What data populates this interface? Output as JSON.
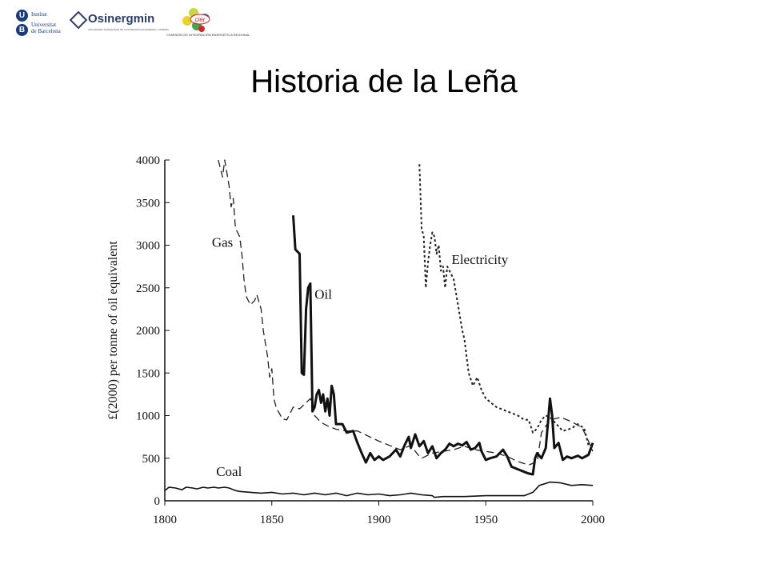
{
  "header": {
    "title": "Historia de la Leña",
    "logos": {
      "ub": {
        "letters": [
          "U",
          "B"
        ],
        "lines": [
          "Institut",
          "Universitat",
          "de Barcelona"
        ]
      },
      "osinergmin": {
        "name": "Osinergmin",
        "subtitle": "ORGANISMO SUPERVISOR DE LA INVERSIÓN EN ENERGÍA Y MINERÍA"
      },
      "cier": {
        "name": "cier",
        "subtitle": "COMISIÓN DE INTEGRACIÓN ENERGÉTICA REGIONAL"
      }
    }
  },
  "chart_data": {
    "type": "line",
    "title": "",
    "xlabel": "",
    "ylabel": "£(2000) per tonne of oil equivalent",
    "xlim": [
      1800,
      2000
    ],
    "ylim": [
      0,
      4000
    ],
    "x_ticks": [
      1800,
      1850,
      1900,
      1950,
      2000
    ],
    "y_ticks": [
      0,
      500,
      1000,
      1500,
      2000,
      2500,
      3000,
      3500,
      4000
    ],
    "grid": false,
    "series": [
      {
        "name": "Gas",
        "style": "dashed",
        "color": "#222222",
        "points": [
          [
            1825,
            4000
          ],
          [
            1827,
            3800
          ],
          [
            1828,
            4000
          ],
          [
            1829,
            3850
          ],
          [
            1830,
            3700
          ],
          [
            1831,
            3450
          ],
          [
            1832,
            3550
          ],
          [
            1833,
            3200
          ],
          [
            1835,
            3100
          ],
          [
            1836,
            2900
          ],
          [
            1837,
            2600
          ],
          [
            1838,
            2400
          ],
          [
            1840,
            2300
          ],
          [
            1842,
            2350
          ],
          [
            1843,
            2420
          ],
          [
            1845,
            2250
          ],
          [
            1846,
            2000
          ],
          [
            1848,
            1700
          ],
          [
            1849,
            1450
          ],
          [
            1850,
            1550
          ],
          [
            1851,
            1200
          ],
          [
            1852,
            1100
          ],
          [
            1853,
            1050
          ],
          [
            1855,
            960
          ],
          [
            1857,
            950
          ],
          [
            1860,
            1100
          ],
          [
            1863,
            1080
          ],
          [
            1866,
            1150
          ],
          [
            1868,
            1200
          ],
          [
            1870,
            1000
          ],
          [
            1873,
            920
          ],
          [
            1876,
            880
          ],
          [
            1880,
            840
          ],
          [
            1885,
            820
          ],
          [
            1890,
            820
          ],
          [
            1895,
            760
          ],
          [
            1900,
            700
          ],
          [
            1905,
            650
          ],
          [
            1910,
            600
          ],
          [
            1915,
            650
          ],
          [
            1918,
            550
          ],
          [
            1920,
            500
          ],
          [
            1925,
            560
          ],
          [
            1930,
            580
          ],
          [
            1935,
            600
          ],
          [
            1940,
            640
          ],
          [
            1945,
            600
          ],
          [
            1950,
            580
          ],
          [
            1955,
            560
          ],
          [
            1960,
            520
          ],
          [
            1965,
            460
          ],
          [
            1970,
            420
          ],
          [
            1974,
            460
          ],
          [
            1976,
            800
          ],
          [
            1980,
            950
          ],
          [
            1985,
            980
          ],
          [
            1990,
            930
          ],
          [
            1995,
            860
          ],
          [
            1998,
            700
          ],
          [
            2000,
            580
          ]
        ]
      },
      {
        "name": "Oil",
        "style": "solid-bold",
        "color": "#111111",
        "points": [
          [
            1860,
            3350
          ],
          [
            1861,
            2950
          ],
          [
            1863,
            2900
          ],
          [
            1864,
            1500
          ],
          [
            1865,
            1480
          ],
          [
            1866,
            2250
          ],
          [
            1867,
            2500
          ],
          [
            1868,
            2550
          ],
          [
            1869,
            1050
          ],
          [
            1870,
            1100
          ],
          [
            1871,
            1250
          ],
          [
            1872,
            1300
          ],
          [
            1873,
            1150
          ],
          [
            1874,
            1250
          ],
          [
            1875,
            1050
          ],
          [
            1876,
            1200
          ],
          [
            1877,
            1000
          ],
          [
            1878,
            1350
          ],
          [
            1879,
            1250
          ],
          [
            1880,
            900
          ],
          [
            1883,
            900
          ],
          [
            1885,
            800
          ],
          [
            1888,
            820
          ],
          [
            1890,
            680
          ],
          [
            1892,
            560
          ],
          [
            1894,
            450
          ],
          [
            1896,
            560
          ],
          [
            1898,
            480
          ],
          [
            1900,
            520
          ],
          [
            1902,
            480
          ],
          [
            1905,
            520
          ],
          [
            1908,
            600
          ],
          [
            1910,
            520
          ],
          [
            1912,
            650
          ],
          [
            1914,
            750
          ],
          [
            1915,
            620
          ],
          [
            1917,
            780
          ],
          [
            1919,
            640
          ],
          [
            1921,
            700
          ],
          [
            1923,
            560
          ],
          [
            1925,
            640
          ],
          [
            1927,
            500
          ],
          [
            1929,
            560
          ],
          [
            1931,
            600
          ],
          [
            1933,
            670
          ],
          [
            1935,
            640
          ],
          [
            1937,
            670
          ],
          [
            1939,
            650
          ],
          [
            1941,
            690
          ],
          [
            1943,
            600
          ],
          [
            1945,
            620
          ],
          [
            1947,
            680
          ],
          [
            1948,
            580
          ],
          [
            1950,
            480
          ],
          [
            1952,
            500
          ],
          [
            1955,
            520
          ],
          [
            1958,
            600
          ],
          [
            1960,
            520
          ],
          [
            1962,
            400
          ],
          [
            1965,
            370
          ],
          [
            1968,
            340
          ],
          [
            1970,
            320
          ],
          [
            1972,
            310
          ],
          [
            1973,
            500
          ],
          [
            1974,
            560
          ],
          [
            1976,
            500
          ],
          [
            1978,
            620
          ],
          [
            1979,
            900
          ],
          [
            1980,
            1200
          ],
          [
            1981,
            1000
          ],
          [
            1982,
            620
          ],
          [
            1984,
            680
          ],
          [
            1986,
            480
          ],
          [
            1988,
            520
          ],
          [
            1990,
            500
          ],
          [
            1993,
            530
          ],
          [
            1995,
            500
          ],
          [
            1998,
            540
          ],
          [
            2000,
            680
          ]
        ]
      },
      {
        "name": "Electricity",
        "style": "dotted",
        "color": "#222222",
        "points": [
          [
            1919,
            3950
          ],
          [
            1920,
            3200
          ],
          [
            1921,
            3100
          ],
          [
            1922,
            2500
          ],
          [
            1923,
            2800
          ],
          [
            1924,
            3000
          ],
          [
            1925,
            3150
          ],
          [
            1926,
            3100
          ],
          [
            1927,
            2900
          ],
          [
            1928,
            3000
          ],
          [
            1929,
            2700
          ],
          [
            1930,
            2750
          ],
          [
            1931,
            2500
          ],
          [
            1932,
            2750
          ],
          [
            1933,
            2700
          ],
          [
            1935,
            2600
          ],
          [
            1937,
            2300
          ],
          [
            1939,
            2000
          ],
          [
            1940,
            1900
          ],
          [
            1942,
            1500
          ],
          [
            1944,
            1350
          ],
          [
            1946,
            1450
          ],
          [
            1948,
            1300
          ],
          [
            1950,
            1200
          ],
          [
            1955,
            1100
          ],
          [
            1960,
            1050
          ],
          [
            1965,
            1000
          ],
          [
            1968,
            950
          ],
          [
            1970,
            950
          ],
          [
            1972,
            800
          ],
          [
            1974,
            850
          ],
          [
            1976,
            950
          ],
          [
            1978,
            1000
          ],
          [
            1980,
            980
          ],
          [
            1983,
            900
          ],
          [
            1986,
            820
          ],
          [
            1990,
            850
          ],
          [
            1993,
            900
          ],
          [
            1996,
            850
          ],
          [
            1998,
            650
          ],
          [
            2000,
            630
          ]
        ]
      },
      {
        "name": "Coal",
        "style": "solid",
        "color": "#111111",
        "points": [
          [
            1800,
            120
          ],
          [
            1802,
            160
          ],
          [
            1805,
            150
          ],
          [
            1808,
            130
          ],
          [
            1810,
            160
          ],
          [
            1813,
            150
          ],
          [
            1815,
            140
          ],
          [
            1818,
            160
          ],
          [
            1820,
            150
          ],
          [
            1823,
            160
          ],
          [
            1825,
            150
          ],
          [
            1828,
            160
          ],
          [
            1830,
            150
          ],
          [
            1833,
            120
          ],
          [
            1835,
            110
          ],
          [
            1840,
            100
          ],
          [
            1845,
            90
          ],
          [
            1850,
            100
          ],
          [
            1855,
            80
          ],
          [
            1860,
            90
          ],
          [
            1865,
            70
          ],
          [
            1870,
            90
          ],
          [
            1875,
            70
          ],
          [
            1880,
            90
          ],
          [
            1885,
            60
          ],
          [
            1890,
            90
          ],
          [
            1895,
            70
          ],
          [
            1900,
            80
          ],
          [
            1905,
            60
          ],
          [
            1910,
            70
          ],
          [
            1915,
            90
          ],
          [
            1920,
            70
          ],
          [
            1925,
            60
          ],
          [
            1926,
            40
          ],
          [
            1930,
            50
          ],
          [
            1940,
            50
          ],
          [
            1950,
            60
          ],
          [
            1960,
            60
          ],
          [
            1968,
            60
          ],
          [
            1972,
            100
          ],
          [
            1975,
            180
          ],
          [
            1980,
            220
          ],
          [
            1985,
            210
          ],
          [
            1990,
            180
          ],
          [
            1995,
            190
          ],
          [
            2000,
            180
          ]
        ]
      }
    ],
    "labels": [
      {
        "text": "Gas",
        "x": 1822,
        "y": 2980
      },
      {
        "text": "Oil",
        "x": 1870,
        "y": 2370
      },
      {
        "text": "Electricity",
        "x": 1934,
        "y": 2780
      },
      {
        "text": "Coal",
        "x": 1824,
        "y": 290
      }
    ]
  }
}
